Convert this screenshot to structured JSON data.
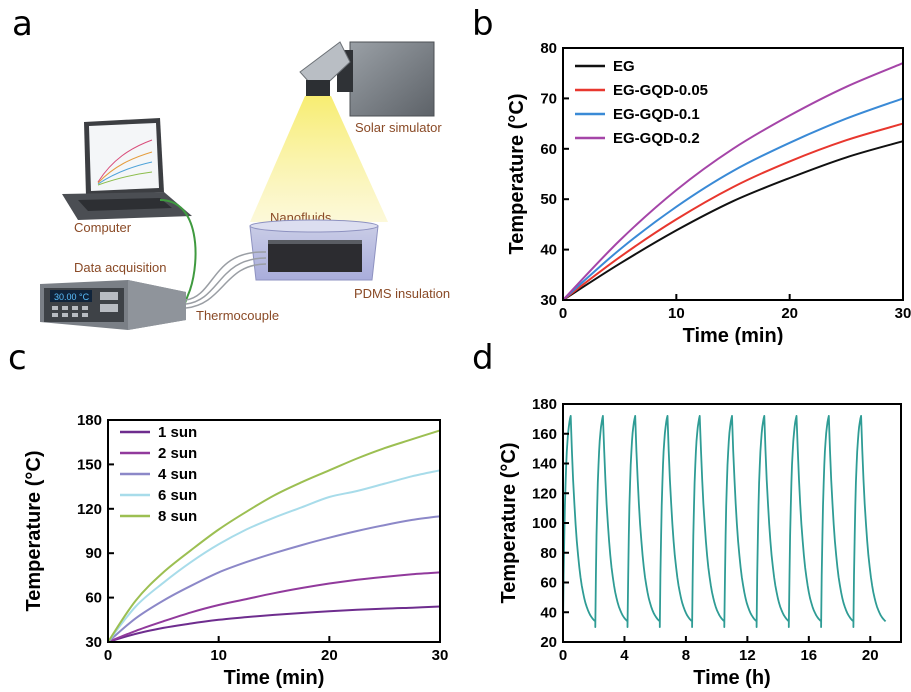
{
  "panel_labels": [
    "a",
    "b",
    "c",
    "d"
  ],
  "diagram": {
    "labels": {
      "solar_simulator": "Solar simulator",
      "nanofluids": "Nanofluids",
      "computer": "Computer",
      "data_acquisition": "Data acquisition",
      "pdms_insulation": "PDMS insulation",
      "thermocouple": "Thermocouple",
      "display": "30.00 °C"
    },
    "colors": {
      "label": "#8a4a26",
      "light_beam": "#f2e04a",
      "cable": "#3f9a3f",
      "device": "#7a7f86"
    }
  },
  "chart_data": [
    {
      "panel": "b",
      "type": "line",
      "xlabel": "Time (min)",
      "ylabel": "Temperature (°C)",
      "xlim": [
        0,
        30
      ],
      "ylim": [
        30,
        80
      ],
      "xticks": [
        0,
        10,
        20,
        30
      ],
      "yticks": [
        30,
        40,
        50,
        60,
        70,
        80
      ],
      "legend_position": "top-left",
      "grid": false,
      "x": [
        0,
        5,
        10,
        15,
        20,
        25,
        30
      ],
      "series": [
        {
          "name": "EG",
          "color": "#111111",
          "values": [
            30,
            37.2,
            43.8,
            49.6,
            54.2,
            58.3,
            61.5
          ]
        },
        {
          "name": "EG-GQD-0.05",
          "color": "#e8372e",
          "values": [
            30,
            38.5,
            46.0,
            52.4,
            57.5,
            61.7,
            65.0
          ]
        },
        {
          "name": "EG-GQD-0.1",
          "color": "#3a8ad6",
          "values": [
            30,
            40.0,
            48.5,
            55.6,
            61.2,
            66.0,
            70.0
          ]
        },
        {
          "name": "EG-GQD-0.2",
          "color": "#a545a8",
          "values": [
            30,
            41.8,
            51.8,
            60.0,
            66.6,
            72.3,
            77.0
          ]
        }
      ]
    },
    {
      "panel": "c",
      "type": "line",
      "xlabel": "Time (min)",
      "ylabel": "Temperature (°C)",
      "xlim": [
        0,
        30
      ],
      "ylim": [
        30,
        180
      ],
      "xticks": [
        0,
        10,
        20,
        30
      ],
      "yticks": [
        30,
        60,
        90,
        120,
        150,
        180
      ],
      "legend_position": "top-left",
      "grid": false,
      "x": [
        0,
        2.5,
        5,
        7.5,
        10,
        12.5,
        15,
        17.5,
        20,
        22.5,
        25,
        27.5,
        30
      ],
      "series": [
        {
          "name": "1 sun",
          "color": "#6e2d8e",
          "values": [
            30,
            35.5,
            39.5,
            42.5,
            45,
            46.8,
            48.3,
            49.6,
            50.8,
            51.8,
            52.6,
            53.2,
            54
          ]
        },
        {
          "name": "2 sun",
          "color": "#913a9c",
          "values": [
            30,
            37.5,
            44,
            50,
            55,
            59,
            63,
            66.5,
            69.5,
            72,
            74,
            75.8,
            77
          ]
        },
        {
          "name": "4 sun",
          "color": "#8c88c8",
          "values": [
            30,
            46,
            58,
            68,
            77,
            84,
            90,
            95.5,
            100.5,
            105,
            109,
            112.5,
            115
          ]
        },
        {
          "name": "6 sun",
          "color": "#a8dcea",
          "values": [
            30,
            54,
            70,
            84,
            96,
            106,
            114,
            121,
            128,
            132,
            137,
            142,
            146
          ]
        },
        {
          "name": "8 sun",
          "color": "#9cbf52",
          "values": [
            30,
            58,
            77,
            92,
            106,
            118,
            129,
            138,
            146,
            154,
            161,
            167,
            173
          ]
        }
      ]
    },
    {
      "panel": "d",
      "type": "line",
      "xlabel": "Time (h)",
      "ylabel": "Temperature (°C)",
      "xlim": [
        0,
        22
      ],
      "ylim": [
        20,
        180
      ],
      "xticks": [
        0,
        4,
        8,
        12,
        16,
        20
      ],
      "yticks": [
        20,
        40,
        60,
        80,
        100,
        120,
        140,
        160,
        180
      ],
      "grid": false,
      "series": [
        {
          "color": "#2f9c95",
          "cycles": 10,
          "cycle_period_h": 2.1,
          "heating_duration_h": 0.5,
          "min_temperature": 30,
          "max_temperature": 172
        }
      ]
    }
  ]
}
